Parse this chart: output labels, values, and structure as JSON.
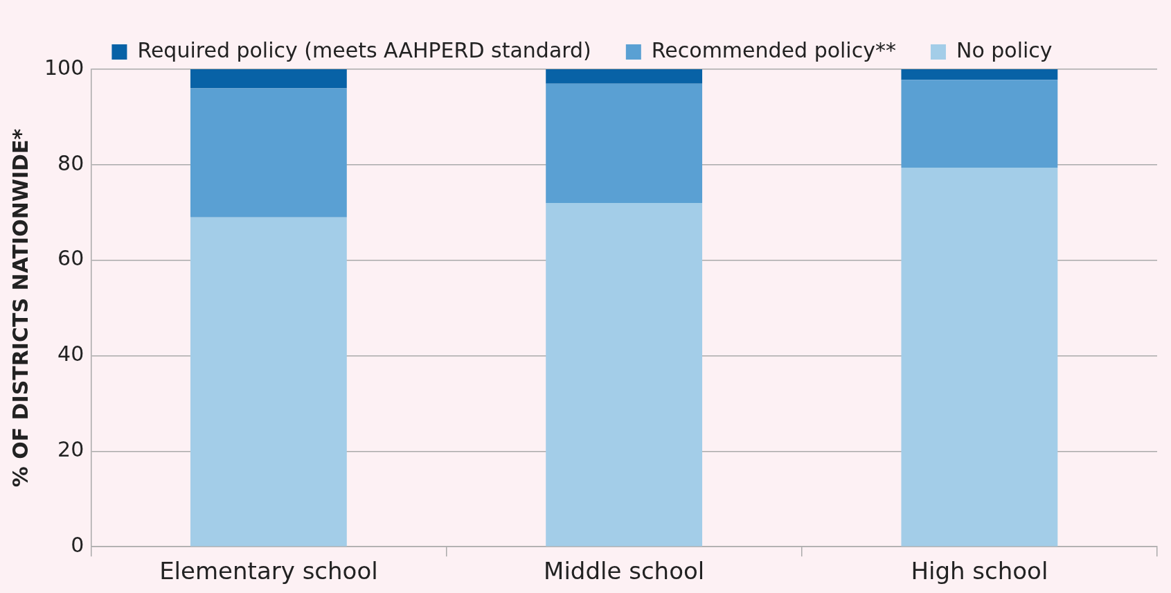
{
  "chart_data": {
    "type": "bar",
    "stacked": true,
    "ylabel": "% OF DISTRICTS NATIONWIDE*",
    "categories": [
      "Elementary school",
      "Middle school",
      "High school"
    ],
    "series": [
      {
        "name": "No policy",
        "color": "#a3cde8",
        "values": [
          69,
          72,
          79.4
        ]
      },
      {
        "name": "Recommended policy**",
        "color": "#5aa0d3",
        "values": [
          27,
          25,
          18.4
        ]
      },
      {
        "name": "Required policy (meets AAHPERD standard)",
        "color": "#0862a6",
        "values": [
          4,
          3,
          2.2
        ]
      }
    ],
    "ylim": [
      0,
      100
    ],
    "yticks": [
      0,
      20,
      40,
      60,
      80,
      100
    ],
    "grid": "y",
    "legend": "top"
  }
}
